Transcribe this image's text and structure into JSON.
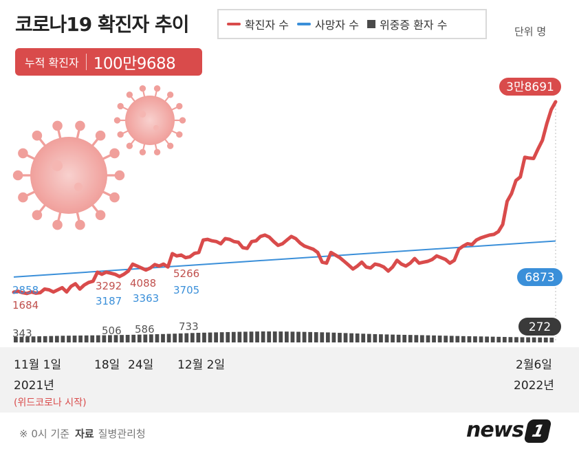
{
  "chart_data": {
    "type": "line",
    "title": "코로나19 확진자 추이",
    "unit": "단위 명",
    "cumulative": {
      "label": "누적 확진자",
      "value": "100만9688"
    },
    "legend": {
      "placement": "top-right"
    },
    "series": [
      {
        "name": "확진자 수",
        "color": "#d94b4b",
        "values": [
          1684,
          1750,
          1650,
          1600,
          1700,
          1620,
          1650,
          1900,
          1850,
          1700,
          1850,
          2000,
          1700,
          2100,
          2300,
          1900,
          2200,
          2400,
          2500,
          3292,
          3100,
          3300,
          3200,
          3100,
          2900,
          3100,
          3400,
          4088,
          3900,
          3700,
          3500,
          3700,
          4050,
          3900,
          4100,
          3800,
          5266,
          5000,
          5100,
          4800,
          4900,
          5300,
          5400,
          7000,
          7100,
          6900,
          6800,
          6500,
          7200,
          7100,
          6800,
          6700,
          6000,
          5900,
          6800,
          6900,
          7500,
          7700,
          7400,
          6800,
          6300,
          6500,
          7000,
          7500,
          7200,
          6600,
          6200,
          6000,
          5800,
          5400,
          4300,
          4200,
          5400,
          5100,
          4800,
          4400,
          4000,
          3600,
          3900,
          4300,
          3800,
          3700,
          4100,
          4000,
          3800,
          3400,
          3800,
          4500,
          4100,
          3900,
          4200,
          4700,
          4200,
          4300,
          4400,
          4600,
          5000,
          4800,
          4600,
          4200,
          4500,
          5800,
          6200,
          6500,
          6400,
          7000,
          7300,
          7500,
          7700,
          7800,
          8200,
          9300,
          13300,
          14800,
          17500,
          18300,
          22900,
          22700,
          22600,
          25000,
          27300,
          32000,
          36200,
          38691
        ]
      },
      {
        "name": "사망자 수",
        "color": "#3a8fd9",
        "start": 2858,
        "end": 6873
      },
      {
        "name": "위중증 환자 수",
        "color": "#4a4a4a",
        "values": [
          343,
          400,
          450,
          480,
          506,
          540,
          586,
          650,
          733,
          790,
          840,
          880,
          870,
          830,
          780,
          700,
          620,
          560,
          520,
          470,
          420,
          380,
          330,
          300,
          272
        ]
      }
    ],
    "x_labels": [
      {
        "line1": "11월 1일",
        "line2": "2021년",
        "line3": "(위드코로나 시작)"
      },
      {
        "line1": "18일"
      },
      {
        "line1": "24일"
      },
      {
        "line1": "12월 2일"
      },
      {
        "line1": "2월6일",
        "line2": "2022년"
      }
    ],
    "annotations": {
      "confirmed": [
        "1684",
        "3292",
        "4088",
        "5266"
      ],
      "deaths": [
        "2858",
        "3187",
        "3363",
        "3705"
      ],
      "critical": [
        "343",
        "506",
        "586",
        "733"
      ],
      "end_confirmed": "3만8691",
      "end_deaths": "6873",
      "end_critical": "272"
    }
  },
  "footer": {
    "note": "※ 0시 기준",
    "source_label": "자료",
    "source": "질병관리청",
    "brand": "news",
    "brand_num": "1"
  }
}
